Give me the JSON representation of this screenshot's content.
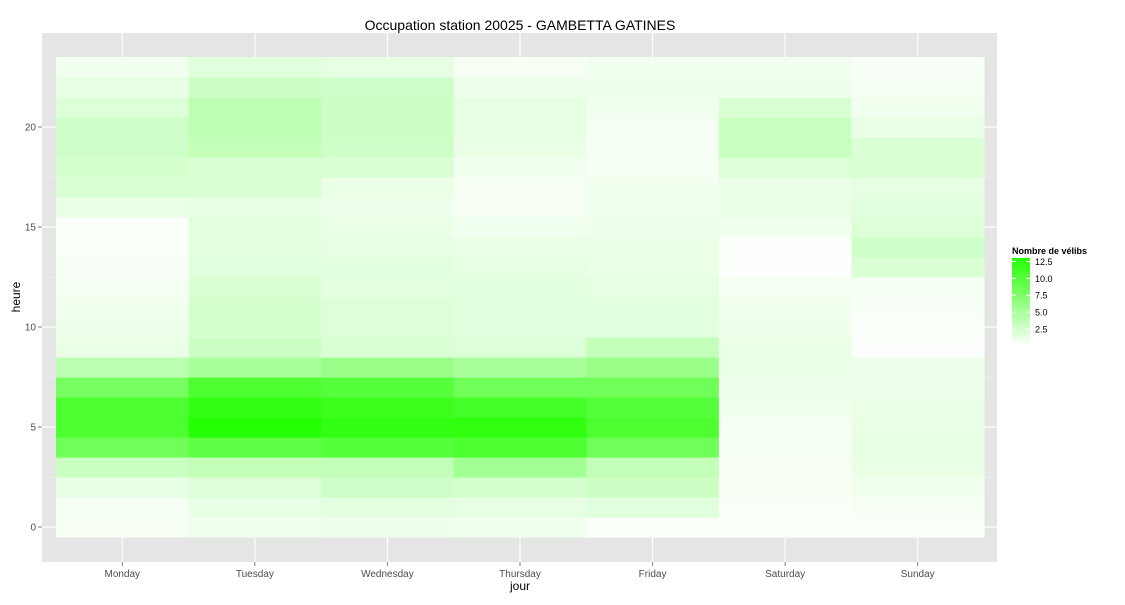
{
  "chart_data": {
    "type": "heatmap",
    "title": "Occupation station 20025 - GAMBETTA GATINES",
    "xlabel": "jour",
    "ylabel": "heure",
    "categories": [
      "Monday",
      "Tuesday",
      "Wednesday",
      "Thursday",
      "Friday",
      "Saturday",
      "Sunday"
    ],
    "y_range": [
      -0.5,
      23.5
    ],
    "y_ticks": [
      0,
      5,
      10,
      15,
      20
    ],
    "grid": true,
    "legend": {
      "title": "Nombre de vélibs",
      "placement": "right",
      "ticks": [
        2.5,
        5.0,
        7.5,
        10.0,
        12.5
      ],
      "tick_labels": [
        "2.5",
        "5.0",
        "7.5",
        "10.0",
        "12.5"
      ],
      "low_color": "#ffffff",
      "high_color": "#22ff00",
      "value_range": [
        0,
        13
      ]
    },
    "hours": [
      0,
      1,
      2,
      3,
      4,
      5,
      6,
      7,
      8,
      9,
      10,
      11,
      12,
      13,
      14,
      15,
      16,
      17,
      18,
      19,
      20,
      21,
      22,
      23
    ],
    "values": [
      [
        0.5,
        0.6,
        1.4,
        3.2,
        8.5,
        10.5,
        10.5,
        8.0,
        4.0,
        1.2,
        1.0,
        0.8,
        0.6,
        0.4,
        0.3,
        0.3,
        1.2,
        2.2,
        2.4,
        2.8,
        2.8,
        2.0,
        1.4,
        0.8
      ],
      [
        0.8,
        1.4,
        2.0,
        3.5,
        9.5,
        12.8,
        12.0,
        10.5,
        5.0,
        3.0,
        2.5,
        2.5,
        2.2,
        1.8,
        1.6,
        1.6,
        1.4,
        2.2,
        2.2,
        3.5,
        3.8,
        3.8,
        3.0,
        1.8
      ],
      [
        1.0,
        1.6,
        2.8,
        3.5,
        10.0,
        12.0,
        11.5,
        10.0,
        6.0,
        2.2,
        2.0,
        2.0,
        1.6,
        1.8,
        1.5,
        1.2,
        1.0,
        1.2,
        2.2,
        2.8,
        3.0,
        3.0,
        2.8,
        1.5
      ],
      [
        0.8,
        1.4,
        2.5,
        5.5,
        10.5,
        12.2,
        11.0,
        8.5,
        5.0,
        2.0,
        1.8,
        1.8,
        1.8,
        1.5,
        1.2,
        0.8,
        0.5,
        0.5,
        0.8,
        1.2,
        1.5,
        1.5,
        1.0,
        0.5
      ],
      [
        0.3,
        1.8,
        3.0,
        3.5,
        8.5,
        10.5,
        10.0,
        8.5,
        6.0,
        3.5,
        1.8,
        1.8,
        1.5,
        1.2,
        1.2,
        1.0,
        0.8,
        0.8,
        0.6,
        0.6,
        0.6,
        0.8,
        1.0,
        0.8
      ],
      [
        0.3,
        0.3,
        0.5,
        0.5,
        0.6,
        0.6,
        0.8,
        1.0,
        1.2,
        1.2,
        1.0,
        0.8,
        0.6,
        0.2,
        0.1,
        0.8,
        1.2,
        1.2,
        2.0,
        3.2,
        3.2,
        2.2,
        1.0,
        0.8
      ],
      [
        0.3,
        0.5,
        0.8,
        1.2,
        1.5,
        1.2,
        1.2,
        1.0,
        1.0,
        0.2,
        0.3,
        0.4,
        0.6,
        2.2,
        2.8,
        2.0,
        1.8,
        1.5,
        2.2,
        2.2,
        1.2,
        0.8,
        0.6,
        0.4
      ]
    ]
  }
}
